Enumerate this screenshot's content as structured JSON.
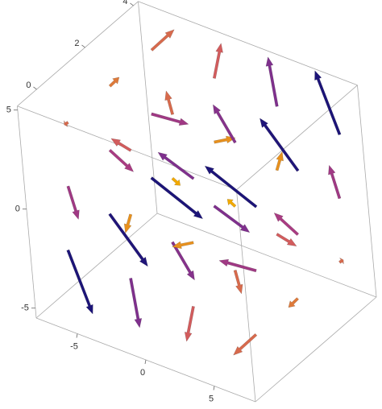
{
  "chart_data": {
    "type": "vector3d",
    "xlim": [
      -8,
      8
    ],
    "ylim": [
      -0.8,
      4.2
    ],
    "zlim": [
      -5.5,
      5.2
    ],
    "xticks": [
      -5,
      0,
      5
    ],
    "yticks": [
      0,
      2,
      4
    ],
    "zticks": [
      -5,
      0,
      5
    ],
    "colormap": [
      "#f2a900",
      "#c8457a",
      "#6a2a92",
      "#1c1478"
    ],
    "x": [
      -6,
      -6,
      -6,
      -6,
      -6,
      -6,
      -6,
      -6,
      -6,
      -2,
      -2,
      -2,
      -2,
      -2,
      -2,
      -2,
      -2,
      -2,
      2,
      2,
      2,
      2,
      2,
      2,
      2,
      2,
      2,
      6,
      6,
      6,
      6,
      6,
      6,
      6,
      6,
      6
    ],
    "y": [
      0,
      0,
      0,
      2,
      2,
      2,
      4,
      4,
      4,
      0,
      0,
      0,
      2,
      2,
      2,
      4,
      4,
      4,
      0,
      0,
      0,
      2,
      2,
      2,
      4,
      4,
      4,
      0,
      0,
      0,
      2,
      2,
      2,
      4,
      4,
      4
    ],
    "z": [
      -4,
      0,
      4,
      -4,
      0,
      4,
      -4,
      0,
      4,
      -4,
      0,
      4,
      -4,
      0,
      4,
      -4,
      0,
      4,
      -4,
      0,
      4,
      -4,
      0,
      4,
      -4,
      0,
      4,
      -4,
      0,
      4,
      -4,
      0,
      4,
      -4,
      0,
      4
    ],
    "u": [
      4.6,
      3,
      1.4,
      4.6,
      3,
      1.4,
      4.6,
      3,
      1.4,
      2.6,
      1,
      -0.6,
      2.6,
      1,
      -0.6,
      2.6,
      1,
      -0.6,
      0.6,
      -1,
      -2.6,
      0.6,
      -1,
      -2.6,
      0.6,
      -1,
      -2.6,
      -1.4,
      -3,
      -4.6,
      -1.4,
      -3,
      -4.6,
      -1.4,
      -3,
      -4.6
    ],
    "v": [
      -1,
      -1,
      -1,
      0,
      0,
      0,
      1,
      1,
      1,
      -1,
      -1,
      -1,
      0,
      0,
      0,
      1,
      1,
      1,
      -1,
      -1,
      -1,
      0,
      0,
      0,
      1,
      1,
      1,
      -1,
      -1,
      -1,
      0,
      0,
      0,
      1,
      1,
      1
    ],
    "w": [
      -3.6,
      -1.2,
      1.2,
      -3.6,
      -1.2,
      1.2,
      -3.6,
      -1.2,
      1.2,
      -2.8,
      -0.4,
      2,
      -2.8,
      -0.4,
      2,
      -2.8,
      -0.4,
      2,
      -2,
      0.4,
      2.8,
      -2,
      0.4,
      2.8,
      -2,
      0.4,
      2.8,
      -1.2,
      1.2,
      3.6,
      -1.2,
      1.2,
      3.6,
      -1.2,
      1.2,
      3.6
    ]
  }
}
